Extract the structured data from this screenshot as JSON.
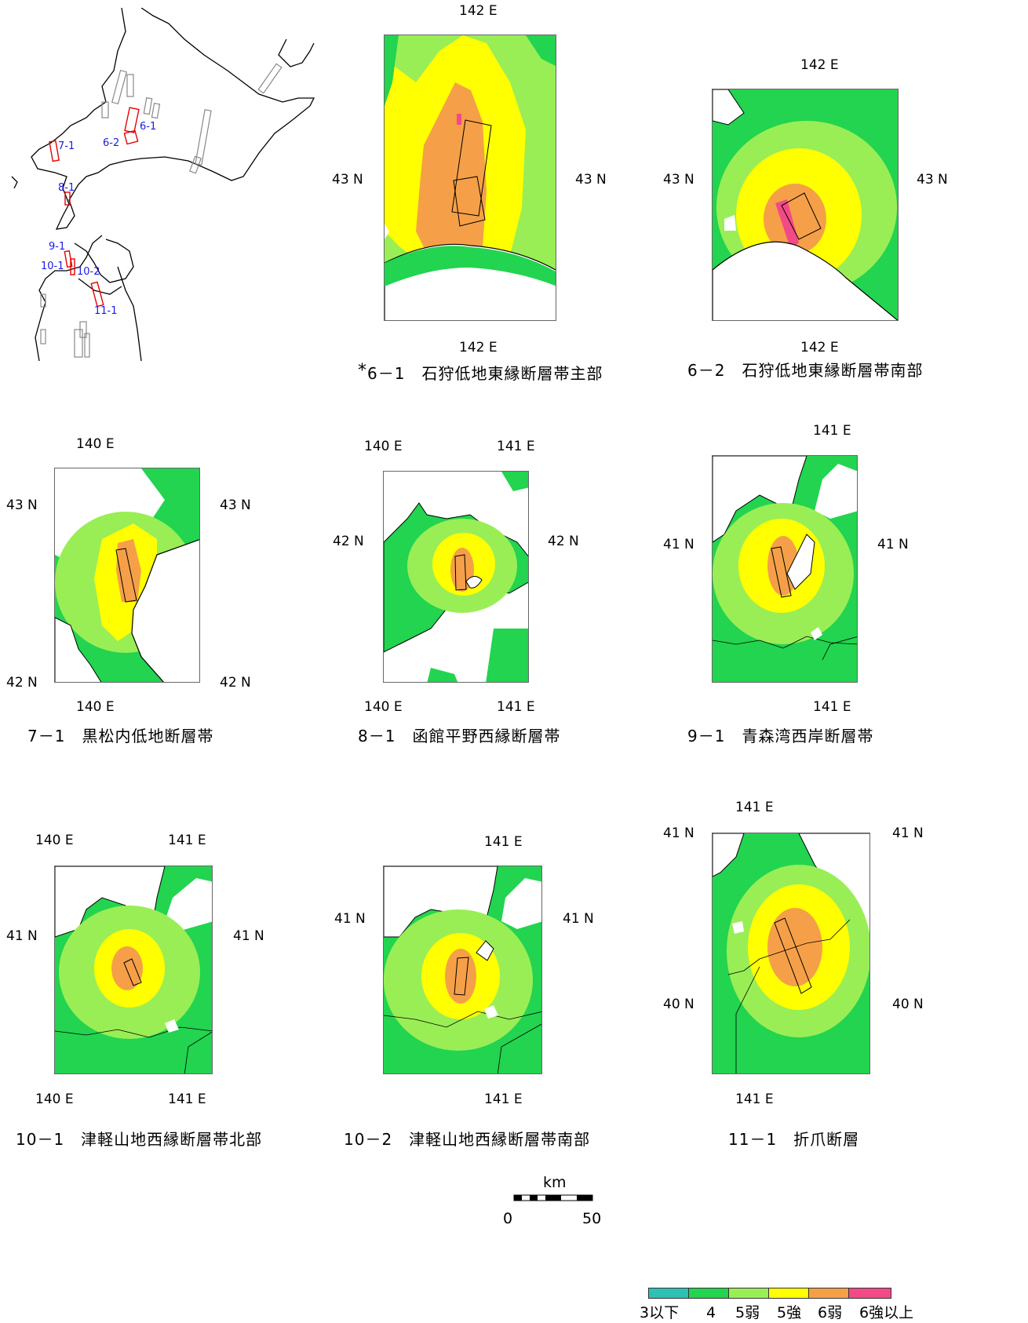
{
  "index_map": {
    "labels": [
      "6-1",
      "6-2",
      "7-1",
      "8-1",
      "9-1",
      "10-1",
      "10-2",
      "11-1"
    ]
  },
  "colors": {
    "le3": "#2fc0b4",
    "i4": "#22d44f",
    "i5l": "#99ee55",
    "i5u": "#ffff00",
    "i6l": "#f5a048",
    "i6u": "#f24a86",
    "fault_active": "#e60000",
    "fault_other": "#888888",
    "index_text": "#1a1ae6"
  },
  "panels": [
    {
      "caption_mark": "*",
      "caption": "6－1　石狩低地東縁断層帯主部",
      "top_lon": "142 E",
      "bottom_lon": "142 E",
      "left_lat": "43 N",
      "right_lat": "43 N"
    },
    {
      "caption": "6－2　石狩低地東縁断層帯南部",
      "top_lon": "142 E",
      "bottom_lon": "142 E",
      "left_lat": "43 N",
      "right_lat": "43 N"
    },
    {
      "caption": "7－1　黒松内低地断層帯",
      "top_lon": "140 E",
      "bottom_lon": "140 E",
      "left_lat_top": "43 N",
      "right_lat_top": "43 N",
      "left_lat_bottom": "42 N",
      "right_lat_bottom": "42 N"
    },
    {
      "caption": "8－1　函館平野西縁断層帯",
      "top_lon_a": "140 E",
      "top_lon_b": "141 E",
      "bottom_lon_a": "140 E",
      "bottom_lon_b": "141 E",
      "left_lat": "42 N",
      "right_lat": "42 N"
    },
    {
      "caption": "9－1　青森湾西岸断層帯",
      "top_lon": "141 E",
      "bottom_lon": "141 E",
      "left_lat": "41 N",
      "right_lat": "41 N"
    },
    {
      "caption": "10－1　津軽山地西縁断層帯北部",
      "top_lon_a": "140 E",
      "top_lon_b": "141 E",
      "bottom_lon_a": "140 E",
      "bottom_lon_b": "141 E",
      "left_lat": "41 N",
      "right_lat": "41 N"
    },
    {
      "caption": "10－2　津軽山地西縁断層帯南部",
      "top_lon": "141 E",
      "bottom_lon": "141 E",
      "left_lat": "41 N",
      "right_lat": "41 N"
    },
    {
      "caption": "11－1　折爪断層",
      "top_lon": "141 E",
      "bottom_lon": "141 E",
      "left_lat_top": "41 N",
      "right_lat_top": "41 N",
      "left_lat_bottom": "40 N",
      "right_lat_bottom": "40 N"
    }
  ],
  "scale_bar": {
    "unit": "km",
    "min": "0",
    "max": "50"
  },
  "legend": {
    "items": [
      {
        "label": "3以下",
        "color": "#2fc0b4"
      },
      {
        "label": "4",
        "color": "#22d44f"
      },
      {
        "label": "5弱",
        "color": "#99ee55"
      },
      {
        "label": "5強",
        "color": "#ffff00"
      },
      {
        "label": "6弱",
        "color": "#f5a048"
      },
      {
        "label": "6強以上",
        "color": "#f24a86"
      }
    ]
  }
}
